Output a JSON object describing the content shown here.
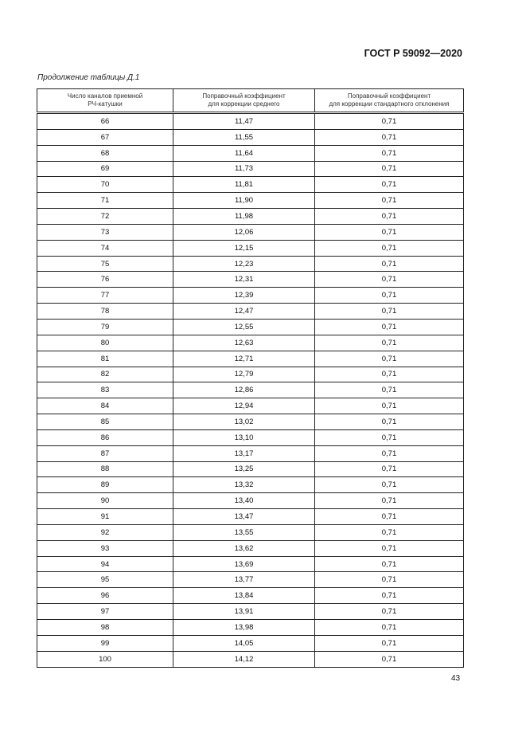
{
  "header": {
    "standard": "ГОСТ Р 59092—2020"
  },
  "caption": "Продолжение таблицы Д.1",
  "table": {
    "columns": [
      [
        "Число каналов приемной",
        "РЧ-катушки"
      ],
      [
        "Поправочный коэффициент",
        "для коррекции среднего"
      ],
      [
        "Поправочный коэффициент",
        "для коррекции стандартного отклонения"
      ]
    ],
    "rows": [
      [
        "66",
        "11,47",
        "0,71"
      ],
      [
        "67",
        "11,55",
        "0,71"
      ],
      [
        "68",
        "11,64",
        "0,71"
      ],
      [
        "69",
        "11,73",
        "0,71"
      ],
      [
        "70",
        "11,81",
        "0,71"
      ],
      [
        "71",
        "11,90",
        "0,71"
      ],
      [
        "72",
        "11,98",
        "0,71"
      ],
      [
        "73",
        "12,06",
        "0,71"
      ],
      [
        "74",
        "12,15",
        "0,71"
      ],
      [
        "75",
        "12,23",
        "0,71"
      ],
      [
        "76",
        "12,31",
        "0,71"
      ],
      [
        "77",
        "12,39",
        "0,71"
      ],
      [
        "78",
        "12,47",
        "0,71"
      ],
      [
        "79",
        "12,55",
        "0,71"
      ],
      [
        "80",
        "12,63",
        "0,71"
      ],
      [
        "81",
        "12,71",
        "0,71"
      ],
      [
        "82",
        "12,79",
        "0,71"
      ],
      [
        "83",
        "12,86",
        "0,71"
      ],
      [
        "84",
        "12,94",
        "0,71"
      ],
      [
        "85",
        "13,02",
        "0,71"
      ],
      [
        "86",
        "13,10",
        "0,71"
      ],
      [
        "87",
        "13,17",
        "0,71"
      ],
      [
        "88",
        "13,25",
        "0,71"
      ],
      [
        "89",
        "13,32",
        "0,71"
      ],
      [
        "90",
        "13,40",
        "0,71"
      ],
      [
        "91",
        "13,47",
        "0,71"
      ],
      [
        "92",
        "13,55",
        "0,71"
      ],
      [
        "93",
        "13,62",
        "0,71"
      ],
      [
        "94",
        "13,69",
        "0,71"
      ],
      [
        "95",
        "13,77",
        "0,71"
      ],
      [
        "96",
        "13,84",
        "0,71"
      ],
      [
        "97",
        "13,91",
        "0,71"
      ],
      [
        "98",
        "13,98",
        "0,71"
      ],
      [
        "99",
        "14,05",
        "0,71"
      ],
      [
        "100",
        "14,12",
        "0,71"
      ]
    ]
  },
  "page_number": "43"
}
